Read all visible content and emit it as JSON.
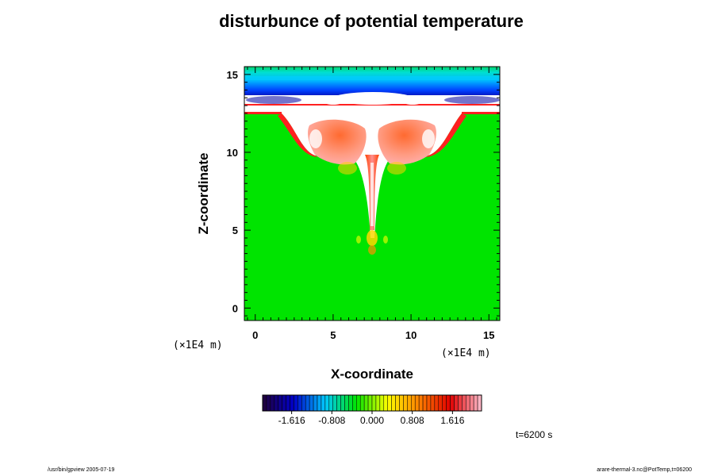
{
  "chart_data": {
    "type": "heatmap",
    "title": "disturbunce of potential temperature",
    "xlabel": "X-coordinate",
    "ylabel": "Z-coordinate",
    "x_unit": "(×1E4 m)",
    "y_unit": "(×1E4 m)",
    "xlim": [
      -0.7,
      15.7
    ],
    "ylim": [
      -0.8,
      15.5
    ],
    "x_ticks": [
      0,
      5,
      10,
      15
    ],
    "y_ticks": [
      0,
      5,
      10,
      15
    ],
    "colorbar": {
      "ticks": [
        "-1.616",
        "-0.808",
        "0.000",
        "0.808",
        "1.616"
      ],
      "min": -2.2,
      "max": 2.2,
      "colors": [
        "#20003a",
        "#0000c8",
        "#00c8ff",
        "#00e400",
        "#ffff00",
        "#ff8000",
        "#e00000",
        "#ffc0d0"
      ]
    },
    "time_label": "t=6200 s"
  },
  "footer": {
    "left": "/usr/bin/gpview 2005-07-19",
    "right": "arare-thermal-3.nc@PotTemp,t=06200"
  }
}
